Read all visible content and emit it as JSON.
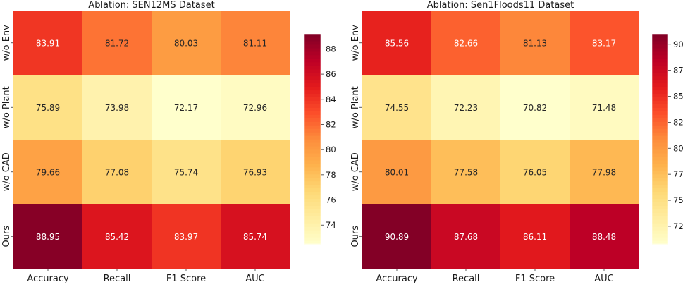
{
  "chart_data": [
    {
      "type": "heatmap",
      "title": "Ablation: SEN12MS Dataset",
      "rows": [
        "w/o Env",
        "w/o Plant",
        "w/o CAD",
        "Ours"
      ],
      "columns": [
        "Accuracy",
        "Recall",
        "F1 Score",
        "AUC"
      ],
      "values": [
        [
          83.91,
          81.72,
          80.03,
          81.11
        ],
        [
          75.89,
          73.98,
          72.17,
          72.96
        ],
        [
          79.66,
          77.08,
          75.74,
          76.93
        ],
        [
          88.95,
          85.42,
          83.97,
          85.74
        ]
      ],
      "colormap": "YlOrRd",
      "colorbar": {
        "min": 72.5,
        "max": 89.2,
        "ticks": [
          74,
          76,
          78,
          80,
          82,
          84,
          86,
          88
        ]
      }
    },
    {
      "type": "heatmap",
      "title": "Ablation: Sen1Floods11 Dataset",
      "rows": [
        "w/o Env",
        "w/o Plant",
        "w/o CAD",
        "Ours"
      ],
      "columns": [
        "Accuracy",
        "Recall",
        "F1 Score",
        "AUC"
      ],
      "values": [
        [
          85.56,
          82.66,
          81.13,
          83.17
        ],
        [
          74.55,
          72.23,
          70.82,
          71.48
        ],
        [
          80.01,
          77.58,
          76.05,
          77.98
        ],
        [
          90.89,
          87.68,
          86.11,
          88.48
        ]
      ],
      "colormap": "YlOrRd",
      "colorbar": {
        "min": 70.8,
        "max": 91.0,
        "ticks": [
          72.5,
          75.0,
          77.5,
          80.0,
          82.5,
          85.0,
          87.5,
          90.0
        ]
      }
    }
  ]
}
